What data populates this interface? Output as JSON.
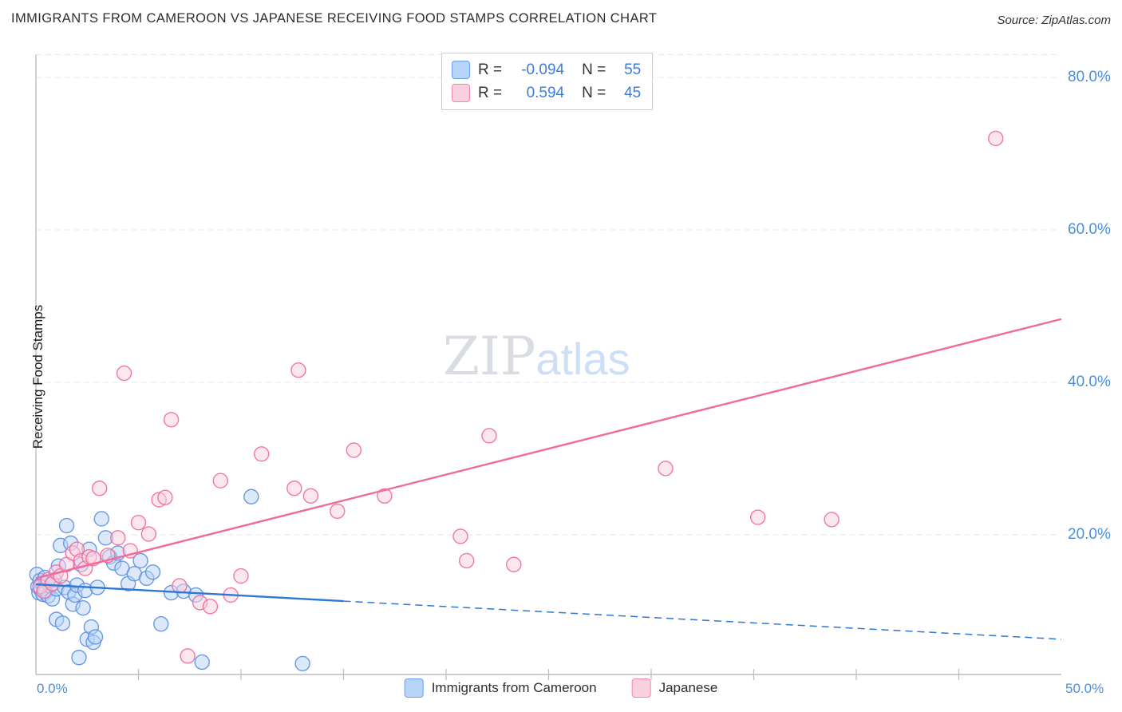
{
  "header": {
    "title": "IMMIGRANTS FROM CAMEROON VS JAPANESE RECEIVING FOOD STAMPS CORRELATION CHART",
    "source": "Source: ZipAtlas.com"
  },
  "watermark": {
    "zip": "ZIP",
    "atlas": "atlas"
  },
  "axis": {
    "ylabel": "Receiving Food Stamps",
    "y_ticks": [
      "80.0%",
      "60.0%",
      "40.0%",
      "20.0%"
    ],
    "x_min_label": "0.0%",
    "x_max_label": "50.0%"
  },
  "legend_top": {
    "r_label": "R =",
    "n_label": "N =",
    "series": [
      {
        "r": "-0.094",
        "n": "55"
      },
      {
        "r": "0.594",
        "n": "45"
      }
    ]
  },
  "legend_bottom": {
    "items": [
      {
        "label": "Immigrants from Cameroon"
      },
      {
        "label": "Japanese"
      }
    ]
  },
  "chart_data": {
    "type": "scatter",
    "title": "IMMIGRANTS FROM CAMEROON VS JAPANESE RECEIVING FOOD STAMPS CORRELATION CHART",
    "xlabel": "Immigrants from Cameroon / Japanese (%)",
    "ylabel": "Receiving Food Stamps (%)",
    "xlim": [
      0,
      50
    ],
    "ylim": [
      0,
      83
    ],
    "grid": true,
    "grid_y": [
      20,
      40,
      60,
      80
    ],
    "legend_position": "bottom",
    "series": [
      {
        "name": "Immigrants from Cameroon",
        "R": -0.094,
        "N": 55,
        "fill": "#b8d4f8",
        "color": "#5b8fe0",
        "line_color": "#2f78d2",
        "point_name": "data-point-cameroon",
        "trend": {
          "solid": [
            [
              0,
              13.5
            ],
            [
              15,
              11.3
            ]
          ],
          "dashed": [
            [
              15,
              11.3
            ],
            [
              50,
              6.3
            ]
          ]
        },
        "points": [
          [
            0.05,
            14.8
          ],
          [
            0.1,
            13.2
          ],
          [
            0.15,
            12.4
          ],
          [
            0.2,
            14.0
          ],
          [
            0.25,
            12.8
          ],
          [
            0.3,
            13.6
          ],
          [
            0.35,
            12.2
          ],
          [
            0.4,
            13.0
          ],
          [
            0.45,
            14.4
          ],
          [
            0.5,
            12.6
          ],
          [
            0.55,
            13.8
          ],
          [
            0.6,
            12.0
          ],
          [
            0.7,
            13.3
          ],
          [
            0.8,
            11.6
          ],
          [
            0.9,
            14.1
          ],
          [
            1.0,
            12.9
          ],
          [
            1.0,
            8.9
          ],
          [
            1.1,
            15.9
          ],
          [
            1.2,
            18.6
          ],
          [
            1.3,
            8.4
          ],
          [
            1.4,
            13.1
          ],
          [
            1.5,
            21.2
          ],
          [
            1.6,
            12.5
          ],
          [
            1.7,
            18.9
          ],
          [
            1.8,
            10.9
          ],
          [
            1.9,
            12.1
          ],
          [
            2.0,
            13.4
          ],
          [
            2.1,
            3.9
          ],
          [
            2.2,
            16.1
          ],
          [
            2.3,
            10.4
          ],
          [
            2.4,
            12.7
          ],
          [
            2.5,
            6.3
          ],
          [
            2.6,
            18.1
          ],
          [
            2.7,
            7.9
          ],
          [
            2.8,
            5.9
          ],
          [
            2.9,
            6.6
          ],
          [
            3.0,
            13.1
          ],
          [
            3.2,
            22.1
          ],
          [
            3.4,
            19.6
          ],
          [
            3.6,
            17.1
          ],
          [
            3.8,
            16.3
          ],
          [
            4.0,
            17.6
          ],
          [
            4.2,
            15.6
          ],
          [
            4.5,
            13.6
          ],
          [
            4.8,
            14.9
          ],
          [
            5.1,
            16.6
          ],
          [
            5.4,
            14.3
          ],
          [
            5.7,
            15.1
          ],
          [
            6.1,
            8.3
          ],
          [
            6.6,
            12.4
          ],
          [
            7.2,
            12.6
          ],
          [
            7.8,
            12.1
          ],
          [
            8.1,
            3.3
          ],
          [
            10.5,
            25.0
          ],
          [
            13.0,
            3.1
          ]
        ]
      },
      {
        "name": "Japanese",
        "R": 0.594,
        "N": 45,
        "fill": "#fbd0de",
        "color": "#f06a9b",
        "line_color": "#ef6a9e",
        "point_name": "data-point-japanese",
        "trend": {
          "solid": [
            [
              0,
              14.3
            ],
            [
              50,
              48.3
            ]
          ]
        },
        "points": [
          [
            0.2,
            13.2
          ],
          [
            0.4,
            12.6
          ],
          [
            0.6,
            14.1
          ],
          [
            0.8,
            13.6
          ],
          [
            1.0,
            15.1
          ],
          [
            1.2,
            14.6
          ],
          [
            1.5,
            16.1
          ],
          [
            1.8,
            17.6
          ],
          [
            2.0,
            18.1
          ],
          [
            2.2,
            16.6
          ],
          [
            2.4,
            15.6
          ],
          [
            2.6,
            17.1
          ],
          [
            2.8,
            16.9
          ],
          [
            3.1,
            26.1
          ],
          [
            3.5,
            17.3
          ],
          [
            4.0,
            19.6
          ],
          [
            4.3,
            41.2
          ],
          [
            4.6,
            17.9
          ],
          [
            5.0,
            21.6
          ],
          [
            5.5,
            20.1
          ],
          [
            6.0,
            24.6
          ],
          [
            6.3,
            24.9
          ],
          [
            6.6,
            35.1
          ],
          [
            7.0,
            13.3
          ],
          [
            7.4,
            4.1
          ],
          [
            8.0,
            11.1
          ],
          [
            8.5,
            10.6
          ],
          [
            9.0,
            27.1
          ],
          [
            9.5,
            12.1
          ],
          [
            10.0,
            14.6
          ],
          [
            11.0,
            30.6
          ],
          [
            12.6,
            26.1
          ],
          [
            12.8,
            41.6
          ],
          [
            13.4,
            25.1
          ],
          [
            14.7,
            23.1
          ],
          [
            15.5,
            31.1
          ],
          [
            17.0,
            25.1
          ],
          [
            20.7,
            19.8
          ],
          [
            22.1,
            33.0
          ],
          [
            21.0,
            16.6
          ],
          [
            23.3,
            16.1
          ],
          [
            30.7,
            28.7
          ],
          [
            35.2,
            22.3
          ],
          [
            38.8,
            22.0
          ],
          [
            46.8,
            72.0
          ]
        ]
      }
    ]
  }
}
